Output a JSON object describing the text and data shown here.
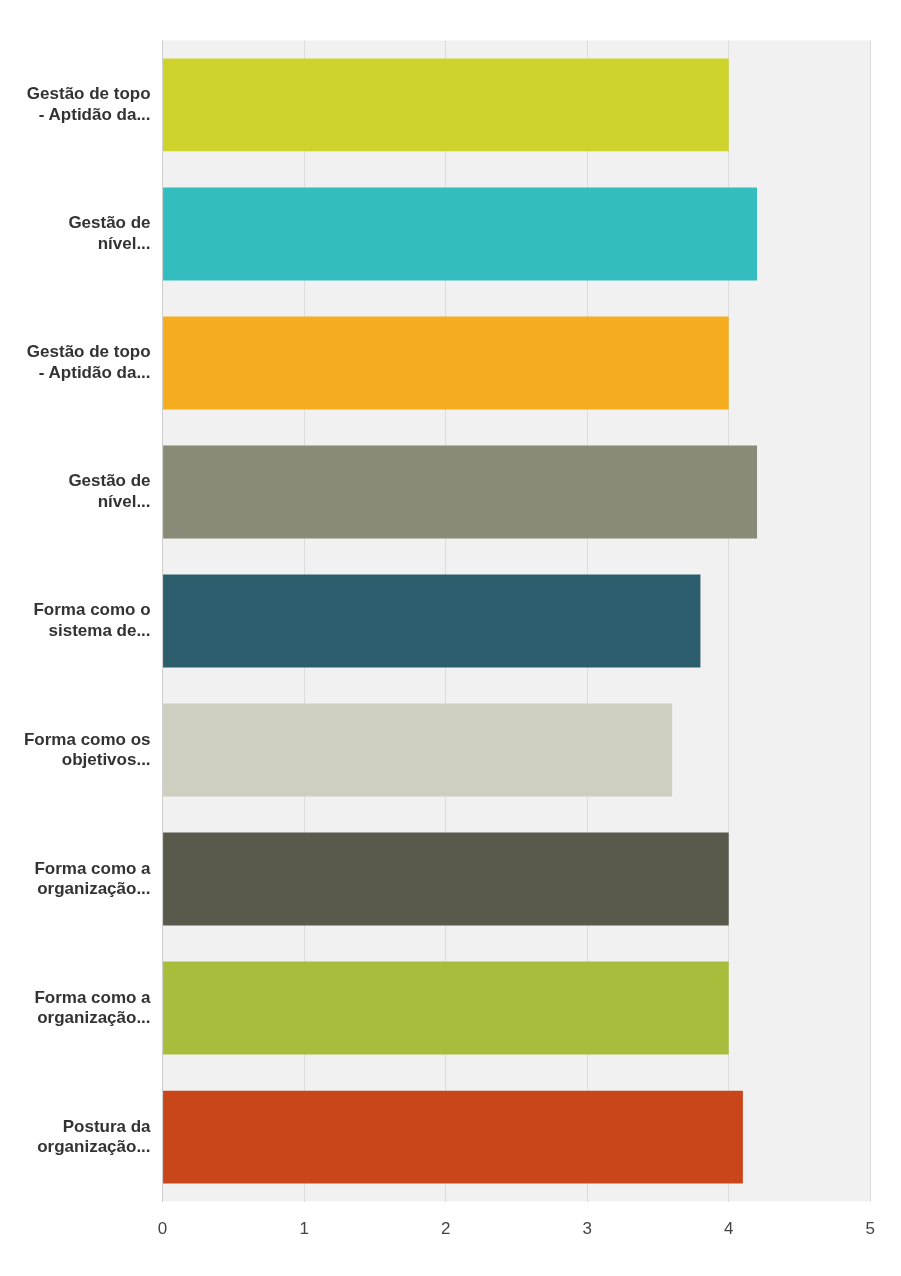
{
  "chart_data": {
    "type": "bar",
    "orientation": "horizontal",
    "categories": [
      "Gestão de topo\n- Aptidão da...",
      "Gestão de\nnível...",
      "Gestão de topo\n- Aptidão da...",
      "Gestão de\nnível...",
      "Forma como o\nsistema de...",
      "Forma como os\nobjetivos...",
      "Forma como a\norganização...",
      "Forma como a\norganização...",
      "Postura da\norganização..."
    ],
    "values": [
      4.0,
      4.2,
      4.0,
      4.2,
      3.8,
      3.6,
      4.0,
      4.0,
      4.1
    ],
    "colors": [
      "#cdd32b",
      "#33bdbf",
      "#f5ad1f",
      "#8a8a78",
      "#2c5d6c",
      "#cfcfc1",
      "#595a4c",
      "#a7bd3b",
      "#c9461a"
    ],
    "xlim": [
      0,
      5
    ],
    "xticks": [
      0,
      1,
      2,
      3,
      4,
      5
    ],
    "grid": "x",
    "legend": false
  }
}
